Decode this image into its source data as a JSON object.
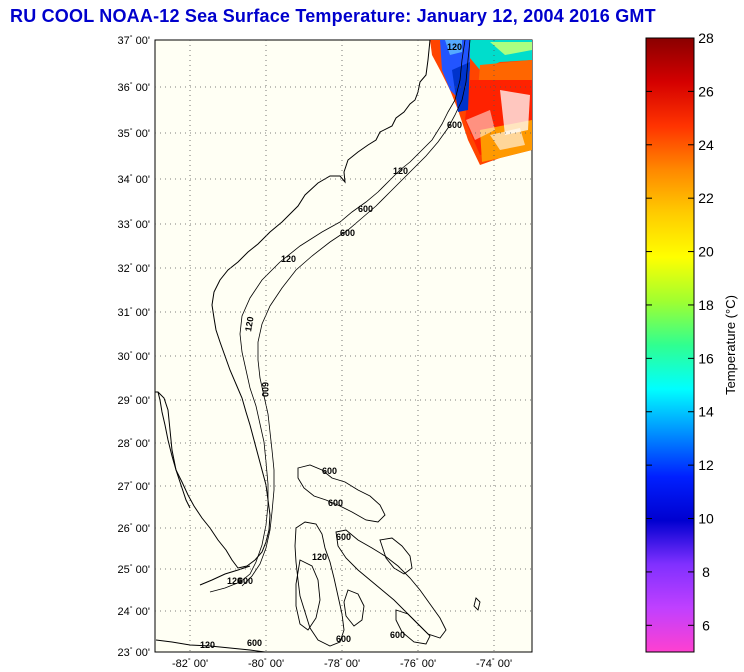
{
  "title": "RU COOL  NOAA-12  Sea Surface Temperature:  January 12, 2004 2016 GMT",
  "map": {
    "lat_labels": [
      "37",
      "36",
      "35",
      "34",
      "33",
      "32",
      "31",
      "30",
      "29",
      "28",
      "27",
      "26",
      "25",
      "24",
      "23"
    ],
    "lon_labels": [
      "-82",
      "-80",
      "-78",
      "-76",
      "-74"
    ],
    "minute_suffix": "00'",
    "degree_symbol": "°",
    "contour_labels": [
      {
        "text": "120"
      },
      {
        "text": "600"
      },
      {
        "text": "120"
      },
      {
        "text": "600"
      },
      {
        "text": "120"
      },
      {
        "text": "600"
      },
      {
        "text": "120"
      },
      {
        "text": "600"
      },
      {
        "text": "600"
      },
      {
        "text": "120"
      },
      {
        "text": "600"
      },
      {
        "text": "600"
      },
      {
        "text": "120"
      },
      {
        "text": "600"
      },
      {
        "text": "600"
      },
      {
        "text": "120"
      },
      {
        "text": "600"
      },
      {
        "text": "600"
      }
    ]
  },
  "colorbar": {
    "label": "Temperature (°C)",
    "ticks": [
      "28",
      "26",
      "24",
      "22",
      "20",
      "18",
      "16",
      "14",
      "12",
      "10",
      "8",
      "6"
    ],
    "stops": [
      "#8a0000",
      "#d40000",
      "#ff3300",
      "#ff8800",
      "#ffcc00",
      "#ffff00",
      "#a0ff30",
      "#30ff90",
      "#00ffff",
      "#0090ff",
      "#0020ff",
      "#0000d0",
      "#8030ff",
      "#c040ff",
      "#ff40d0"
    ]
  }
}
